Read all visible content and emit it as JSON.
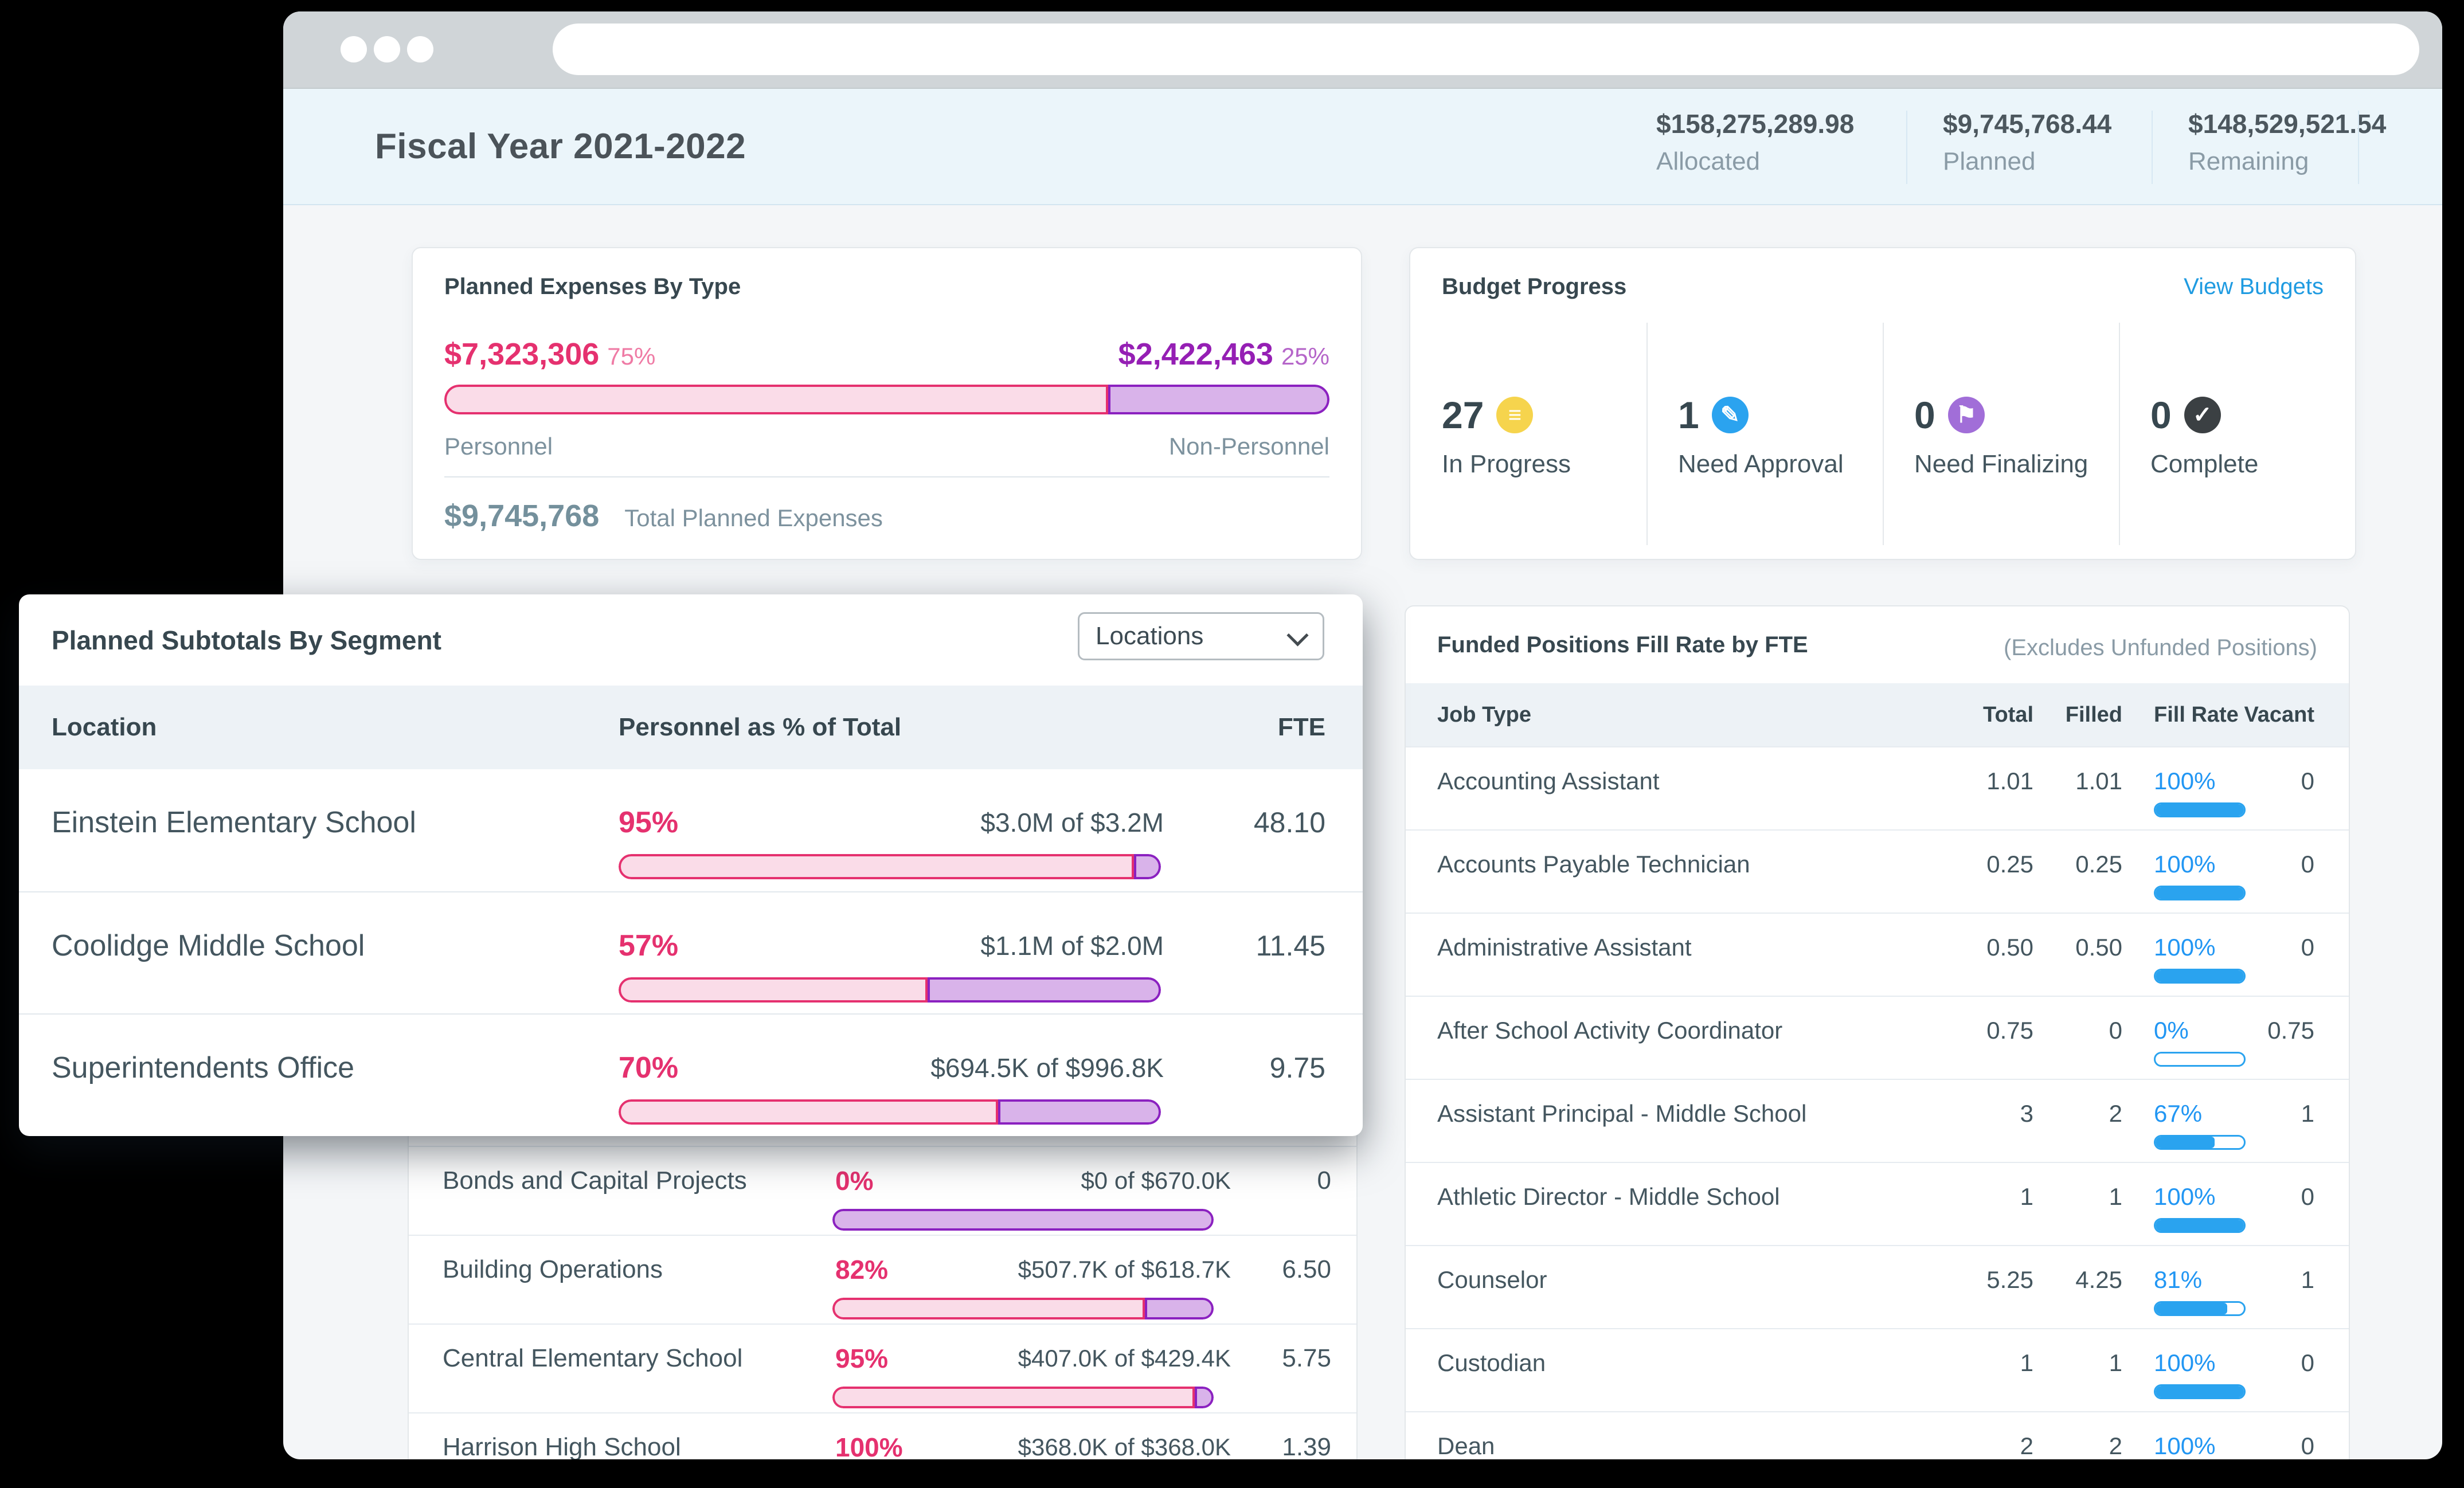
{
  "colors": {
    "pink": "#e5316f",
    "pink_light": "#fadce8",
    "purple": "#951fb4",
    "purple_border": "#8b21c0",
    "purple_light": "#d9b3ea",
    "blue_link": "#1f9be1",
    "fill_blue": "#2aa3ef",
    "yellow": "#f6d44d",
    "dark": "#37474f",
    "header_bg": "#ebf5fa"
  },
  "window": {
    "url": ""
  },
  "header": {
    "title": "Fiscal Year 2021-2022",
    "stats": [
      {
        "value": "$158,275,289.98",
        "label": "Allocated"
      },
      {
        "value": "$9,745,768.44",
        "label": "Planned"
      },
      {
        "value": "$148,529,521.54",
        "label": "Remaining"
      }
    ]
  },
  "planned_expenses": {
    "title": "Planned Expenses By Type",
    "personnel": {
      "amount": "$7,323,306",
      "pct": "75%",
      "label": "Personnel"
    },
    "non_personnel": {
      "amount": "$2,422,463",
      "pct": "25%",
      "label": "Non-Personnel"
    },
    "split_pct_num": 75,
    "total": {
      "amount": "$9,745,768",
      "label": "Total Planned Expenses"
    }
  },
  "budget_progress": {
    "title": "Budget Progress",
    "link": "View Budgets",
    "stats": [
      {
        "count": "27",
        "label": "In Progress",
        "icon": "list-icon",
        "glyph": "≡",
        "color": "#f6d44d"
      },
      {
        "count": "1",
        "label": "Need Approval",
        "icon": "pencil-icon",
        "glyph": "✎",
        "color": "#2ba3ef"
      },
      {
        "count": "0",
        "label": "Need Finalizing",
        "icon": "flag-icon",
        "glyph": "⚑",
        "color": "#a16ed8"
      },
      {
        "count": "0",
        "label": "Complete",
        "icon": "check-icon",
        "glyph": "✓",
        "color": "#3b4043"
      }
    ]
  },
  "segment_card": {
    "title": "Planned Subtotals By Segment",
    "dropdown_value": "Locations",
    "columns": [
      "Location",
      "Personnel as % of Total",
      "FTE"
    ],
    "rows": [
      {
        "name": "Einstein Elementary School",
        "pct": "95%",
        "pct_num": 95,
        "amount": "$3.0M of $3.2M",
        "fte": "48.10"
      },
      {
        "name": "Coolidge Middle School",
        "pct": "57%",
        "pct_num": 57,
        "amount": "$1.1M of $2.0M",
        "fte": "11.45"
      },
      {
        "name": "Superintendents Office",
        "pct": "70%",
        "pct_num": 70,
        "amount": "$694.5K of $996.8K",
        "fte": "9.75"
      }
    ]
  },
  "background_segment_rows": [
    {
      "name": "Bonds and Capital Projects",
      "pct": "0%",
      "pct_num": 0,
      "amount": "$0 of $670.0K",
      "fte": "0"
    },
    {
      "name": "Building Operations",
      "pct": "82%",
      "pct_num": 82,
      "amount": "$507.7K of $618.7K",
      "fte": "6.50"
    },
    {
      "name": "Central Elementary School",
      "pct": "95%",
      "pct_num": 95,
      "amount": "$407.0K of $429.4K",
      "fte": "5.75"
    },
    {
      "name": "Harrison High School",
      "pct": "100%",
      "pct_num": 100,
      "amount": "$368.0K of $368.0K",
      "fte": "1.39"
    }
  ],
  "funded_positions": {
    "title": "Funded Positions Fill Rate by FTE",
    "note": "(Excludes Unfunded Positions)",
    "columns": [
      "Job Type",
      "Total",
      "Filled",
      "Fill Rate",
      "Vacant"
    ],
    "rows": [
      {
        "job": "Accounting Assistant",
        "total": "1.01",
        "filled": "1.01",
        "fill_rate": "100%",
        "fill_num": 100,
        "vacant": "0"
      },
      {
        "job": "Accounts Payable Technician",
        "total": "0.25",
        "filled": "0.25",
        "fill_rate": "100%",
        "fill_num": 100,
        "vacant": "0"
      },
      {
        "job": "Administrative Assistant",
        "total": "0.50",
        "filled": "0.50",
        "fill_rate": "100%",
        "fill_num": 100,
        "vacant": "0"
      },
      {
        "job": "After School Activity Coordinator",
        "total": "0.75",
        "filled": "0",
        "fill_rate": "0%",
        "fill_num": 0,
        "vacant": "0.75"
      },
      {
        "job": "Assistant Principal - Middle School",
        "total": "3",
        "filled": "2",
        "fill_rate": "67%",
        "fill_num": 67,
        "vacant": "1"
      },
      {
        "job": "Athletic Director - Middle School",
        "total": "1",
        "filled": "1",
        "fill_rate": "100%",
        "fill_num": 100,
        "vacant": "0"
      },
      {
        "job": "Counselor",
        "total": "5.25",
        "filled": "4.25",
        "fill_rate": "81%",
        "fill_num": 81,
        "vacant": "1"
      },
      {
        "job": "Custodian",
        "total": "1",
        "filled": "1",
        "fill_rate": "100%",
        "fill_num": 100,
        "vacant": "0"
      },
      {
        "job": "Dean",
        "total": "2",
        "filled": "2",
        "fill_rate": "100%",
        "fill_num": 100,
        "vacant": "0"
      }
    ]
  }
}
